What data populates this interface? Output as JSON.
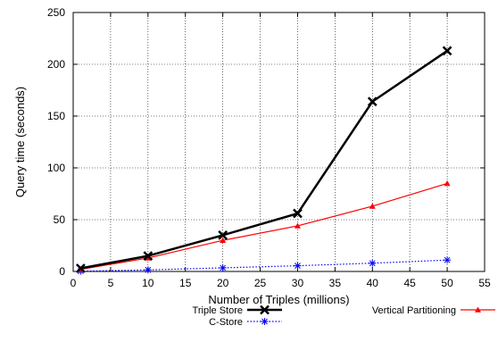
{
  "chart_data": {
    "type": "line",
    "title": "",
    "xlabel": "Number of Triples (millions)",
    "ylabel": "Query time (seconds)",
    "xlim": [
      0,
      55
    ],
    "ylim": [
      0,
      250
    ],
    "xticks": [
      0,
      5,
      10,
      15,
      20,
      25,
      30,
      35,
      40,
      45,
      50,
      55
    ],
    "yticks": [
      0,
      50,
      100,
      150,
      200,
      250
    ],
    "grid": true,
    "legend_position": "below",
    "series": [
      {
        "name": "Triple Store",
        "color": "#000000",
        "marker": "x",
        "line": "solid-thick",
        "x": [
          1,
          10,
          20,
          30,
          40,
          50
        ],
        "y": [
          3,
          15,
          35,
          56,
          164,
          213
        ]
      },
      {
        "name": "Vertical Partitioning",
        "color": "#ff0000",
        "marker": "triangle",
        "line": "solid",
        "x": [
          1,
          10,
          20,
          30,
          40,
          50
        ],
        "y": [
          2,
          13,
          30,
          44,
          63,
          85
        ]
      },
      {
        "name": "C-Store",
        "color": "#0000ff",
        "marker": "asterisk",
        "line": "dotted",
        "x": [
          1,
          10,
          20,
          30,
          40,
          50
        ],
        "y": [
          0.3,
          1.5,
          3.5,
          5.5,
          8,
          11
        ]
      }
    ]
  }
}
